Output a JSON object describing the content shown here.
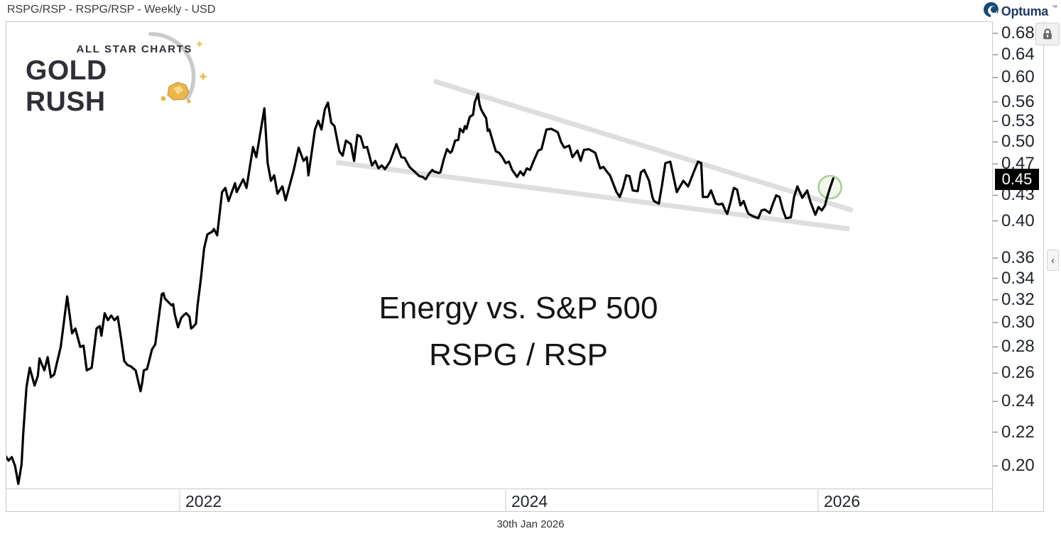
{
  "header": {
    "title": "RSPG/RSP - RSPG/RSP - Weekly - USD",
    "brand": {
      "name": "Optuma",
      "mark": "™"
    }
  },
  "logo": {
    "line1": "ALL STAR CHARTS",
    "line2": "GOLD RUSH"
  },
  "annotation": {
    "line1": "Energy vs. S&P 500",
    "line2": "RSPG / RSP"
  },
  "y_axis": {
    "scale": "log",
    "tick_labels": [
      "0.68",
      "0.64",
      "0.60",
      "0.56",
      "0.53",
      "0.50",
      "0.47",
      "0.43",
      "0.40",
      "0.36",
      "0.34",
      "0.32",
      "0.30",
      "0.28",
      "0.26",
      "0.24",
      "0.22",
      "0.20"
    ],
    "current_price_label": "0.45"
  },
  "x_axis": {
    "year_labels": [
      "2022",
      "2024",
      "2026"
    ],
    "footer_date": "30th Jan 2026"
  },
  "icons": {
    "collapse_glyph": "‹"
  },
  "colors": {
    "price_line": "#000000",
    "trendline": "#dbdbdb",
    "highlight_fill": "#e8f0dd",
    "highlight_stroke": "#a6cd99",
    "axis_text": "#20242c",
    "brand_navy": "#1c3a5f",
    "gold": "#eab64e"
  },
  "chart_data": {
    "type": "line",
    "title": "Energy vs. S&P 500 — RSPG / RSP weekly ratio",
    "x_unit": "decimal_year",
    "x_range": [
      2020.93,
      2026.08
    ],
    "y_range": [
      0.19,
      0.68
    ],
    "y_scale": "log",
    "grid": false,
    "legend": false,
    "last_date_label": "30th Jan 2026",
    "last_value": 0.45,
    "series": [
      {
        "name": "RSPG/RSP",
        "color": "#000000",
        "points": [
          [
            2020.93,
            0.206
          ],
          [
            2020.95,
            0.203
          ],
          [
            2020.97,
            0.205
          ],
          [
            2020.99,
            0.2
          ],
          [
            2021.01,
            0.19
          ],
          [
            2021.03,
            0.201
          ],
          [
            2021.04,
            0.219
          ],
          [
            2021.06,
            0.25
          ],
          [
            2021.08,
            0.264
          ],
          [
            2021.11,
            0.251
          ],
          [
            2021.13,
            0.258
          ],
          [
            2021.14,
            0.271
          ],
          [
            2021.17,
            0.262
          ],
          [
            2021.19,
            0.272
          ],
          [
            2021.21,
            0.257
          ],
          [
            2021.23,
            0.259
          ],
          [
            2021.27,
            0.28
          ],
          [
            2021.31,
            0.323
          ],
          [
            2021.34,
            0.291
          ],
          [
            2021.36,
            0.295
          ],
          [
            2021.39,
            0.28
          ],
          [
            2021.41,
            0.281
          ],
          [
            2021.43,
            0.262
          ],
          [
            2021.46,
            0.264
          ],
          [
            2021.49,
            0.295
          ],
          [
            2021.51,
            0.297
          ],
          [
            2021.52,
            0.289
          ],
          [
            2021.54,
            0.308
          ],
          [
            2021.56,
            0.302
          ],
          [
            2021.58,
            0.306
          ],
          [
            2021.6,
            0.302
          ],
          [
            2021.62,
            0.305
          ],
          [
            2021.64,
            0.287
          ],
          [
            2021.66,
            0.269
          ],
          [
            2021.68,
            0.266
          ],
          [
            2021.7,
            0.265
          ],
          [
            2021.73,
            0.262
          ],
          [
            2021.76,
            0.247
          ],
          [
            2021.77,
            0.253
          ],
          [
            2021.78,
            0.262
          ],
          [
            2021.8,
            0.263
          ],
          [
            2021.83,
            0.278
          ],
          [
            2021.85,
            0.282
          ],
          [
            2021.89,
            0.325
          ],
          [
            2021.9,
            0.326
          ],
          [
            2021.91,
            0.321
          ],
          [
            2021.93,
            0.318
          ],
          [
            2021.95,
            0.315
          ],
          [
            2021.96,
            0.316
          ],
          [
            2021.97,
            0.307
          ],
          [
            2021.99,
            0.296
          ],
          [
            2022.01,
            0.304
          ],
          [
            2022.03,
            0.307
          ],
          [
            2022.04,
            0.308
          ],
          [
            2022.06,
            0.305
          ],
          [
            2022.07,
            0.295
          ],
          [
            2022.08,
            0.296
          ],
          [
            2022.1,
            0.299
          ],
          [
            2022.11,
            0.315
          ],
          [
            2022.13,
            0.339
          ],
          [
            2022.15,
            0.37
          ],
          [
            2022.17,
            0.385
          ],
          [
            2022.2,
            0.388
          ],
          [
            2022.21,
            0.391
          ],
          [
            2022.23,
            0.384
          ],
          [
            2022.26,
            0.434
          ],
          [
            2022.28,
            0.439
          ],
          [
            2022.3,
            0.423
          ],
          [
            2022.34,
            0.445
          ],
          [
            2022.35,
            0.434
          ],
          [
            2022.39,
            0.45
          ],
          [
            2022.41,
            0.439
          ],
          [
            2022.45,
            0.493
          ],
          [
            2022.47,
            0.479
          ],
          [
            2022.52,
            0.55
          ],
          [
            2022.54,
            0.471
          ],
          [
            2022.56,
            0.448
          ],
          [
            2022.58,
            0.455
          ],
          [
            2022.6,
            0.432
          ],
          [
            2022.63,
            0.441
          ],
          [
            2022.65,
            0.424
          ],
          [
            2022.7,
            0.462
          ],
          [
            2022.73,
            0.492
          ],
          [
            2022.76,
            0.474
          ],
          [
            2022.78,
            0.479
          ],
          [
            2022.79,
            0.455
          ],
          [
            2022.83,
            0.518
          ],
          [
            2022.85,
            0.531
          ],
          [
            2022.87,
            0.518
          ],
          [
            2022.89,
            0.548
          ],
          [
            2022.91,
            0.559
          ],
          [
            2022.93,
            0.528
          ],
          [
            2022.95,
            0.523
          ],
          [
            2022.98,
            0.487
          ],
          [
            2023.0,
            0.481
          ],
          [
            2023.02,
            0.502
          ],
          [
            2023.05,
            0.497
          ],
          [
            2023.07,
            0.474
          ],
          [
            2023.09,
            0.51
          ],
          [
            2023.11,
            0.508
          ],
          [
            2023.13,
            0.492
          ],
          [
            2023.15,
            0.493
          ],
          [
            2023.18,
            0.468
          ],
          [
            2023.2,
            0.474
          ],
          [
            2023.22,
            0.464
          ],
          [
            2023.24,
            0.468
          ],
          [
            2023.26,
            0.463
          ],
          [
            2023.29,
            0.473
          ],
          [
            2023.33,
            0.497
          ],
          [
            2023.36,
            0.479
          ],
          [
            2023.38,
            0.478
          ],
          [
            2023.41,
            0.466
          ],
          [
            2023.44,
            0.46
          ],
          [
            2023.47,
            0.454
          ],
          [
            2023.49,
            0.453
          ],
          [
            2023.51,
            0.45
          ],
          [
            2023.53,
            0.457
          ],
          [
            2023.55,
            0.462
          ],
          [
            2023.56,
            0.46
          ],
          [
            2023.59,
            0.458
          ],
          [
            2023.6,
            0.459
          ],
          [
            2023.62,
            0.476
          ],
          [
            2023.64,
            0.49
          ],
          [
            2023.66,
            0.485
          ],
          [
            2023.67,
            0.487
          ],
          [
            2023.69,
            0.502
          ],
          [
            2023.71,
            0.503
          ],
          [
            2023.72,
            0.519
          ],
          [
            2023.74,
            0.514
          ],
          [
            2023.75,
            0.523
          ],
          [
            2023.76,
            0.519
          ],
          [
            2023.78,
            0.537
          ],
          [
            2023.8,
            0.54
          ],
          [
            2023.81,
            0.559
          ],
          [
            2023.83,
            0.573
          ],
          [
            2023.84,
            0.556
          ],
          [
            2023.85,
            0.548
          ],
          [
            2023.87,
            0.539
          ],
          [
            2023.88,
            0.535
          ],
          [
            2023.89,
            0.516
          ],
          [
            2023.9,
            0.518
          ],
          [
            2023.92,
            0.502
          ],
          [
            2023.94,
            0.487
          ],
          [
            2023.96,
            0.485
          ],
          [
            2023.98,
            0.479
          ],
          [
            2024.0,
            0.471
          ],
          [
            2024.02,
            0.473
          ],
          [
            2024.04,
            0.462
          ],
          [
            2024.07,
            0.453
          ],
          [
            2024.09,
            0.46
          ],
          [
            2024.11,
            0.455
          ],
          [
            2024.13,
            0.464
          ],
          [
            2024.15,
            0.462
          ],
          [
            2024.17,
            0.473
          ],
          [
            2024.2,
            0.488
          ],
          [
            2024.22,
            0.49
          ],
          [
            2024.25,
            0.518
          ],
          [
            2024.28,
            0.519
          ],
          [
            2024.32,
            0.514
          ],
          [
            2024.34,
            0.5
          ],
          [
            2024.36,
            0.492
          ],
          [
            2024.39,
            0.495
          ],
          [
            2024.41,
            0.479
          ],
          [
            2024.44,
            0.488
          ],
          [
            2024.46,
            0.474
          ],
          [
            2024.48,
            0.489
          ],
          [
            2024.51,
            0.49
          ],
          [
            2024.55,
            0.485
          ],
          [
            2024.58,
            0.464
          ],
          [
            2024.6,
            0.466
          ],
          [
            2024.62,
            0.46
          ],
          [
            2024.64,
            0.455
          ],
          [
            2024.68,
            0.434
          ],
          [
            2024.7,
            0.428
          ],
          [
            2024.72,
            0.439
          ],
          [
            2024.74,
            0.455
          ],
          [
            2024.76,
            0.454
          ],
          [
            2024.78,
            0.436
          ],
          [
            2024.81,
            0.435
          ],
          [
            2024.83,
            0.459
          ],
          [
            2024.85,
            0.462
          ],
          [
            2024.88,
            0.448
          ],
          [
            2024.9,
            0.428
          ],
          [
            2024.91,
            0.423
          ],
          [
            2024.94,
            0.42
          ],
          [
            2024.96,
            0.443
          ],
          [
            2024.98,
            0.471
          ],
          [
            2025.01,
            0.473
          ],
          [
            2025.03,
            0.453
          ],
          [
            2025.05,
            0.434
          ],
          [
            2025.07,
            0.441
          ],
          [
            2025.09,
            0.448
          ],
          [
            2025.12,
            0.441
          ],
          [
            2025.15,
            0.457
          ],
          [
            2025.18,
            0.473
          ],
          [
            2025.2,
            0.471
          ],
          [
            2025.21,
            0.428
          ],
          [
            2025.24,
            0.428
          ],
          [
            2025.26,
            0.436
          ],
          [
            2025.29,
            0.42
          ],
          [
            2025.31,
            0.419
          ],
          [
            2025.33,
            0.42
          ],
          [
            2025.35,
            0.411
          ],
          [
            2025.36,
            0.408
          ],
          [
            2025.38,
            0.422
          ],
          [
            2025.4,
            0.439
          ],
          [
            2025.42,
            0.437
          ],
          [
            2025.44,
            0.418
          ],
          [
            2025.46,
            0.423
          ],
          [
            2025.48,
            0.412
          ],
          [
            2025.49,
            0.408
          ],
          [
            2025.52,
            0.405
          ],
          [
            2025.55,
            0.403
          ],
          [
            2025.57,
            0.412
          ],
          [
            2025.59,
            0.413
          ],
          [
            2025.62,
            0.409
          ],
          [
            2025.64,
            0.42
          ],
          [
            2025.66,
            0.43
          ],
          [
            2025.68,
            0.428
          ],
          [
            2025.7,
            0.413
          ],
          [
            2025.72,
            0.403
          ],
          [
            2025.75,
            0.404
          ],
          [
            2025.77,
            0.428
          ],
          [
            2025.79,
            0.441
          ],
          [
            2025.82,
            0.427
          ],
          [
            2025.85,
            0.436
          ],
          [
            2025.87,
            0.422
          ],
          [
            2025.9,
            0.407
          ],
          [
            2025.92,
            0.416
          ],
          [
            2025.94,
            0.412
          ],
          [
            2025.96,
            0.418
          ],
          [
            2025.97,
            0.426
          ],
          [
            2025.99,
            0.439
          ],
          [
            2026.01,
            0.451
          ]
        ]
      }
    ],
    "trendlines": [
      {
        "name": "upper-trendline",
        "color": "#dbdbdb",
        "from": [
          2023.56,
          0.594
        ],
        "to": [
          2026.13,
          0.412
        ]
      },
      {
        "name": "lower-trendline",
        "color": "#dbdbdb",
        "from": [
          2022.96,
          0.472
        ],
        "to": [
          2026.11,
          0.391
        ]
      }
    ],
    "highlight": {
      "shape": "ellipse",
      "t": 2025.99,
      "v": 0.44,
      "radius_px": 16,
      "fill": "#e8f0dd",
      "stroke": "#a6cd99"
    }
  }
}
